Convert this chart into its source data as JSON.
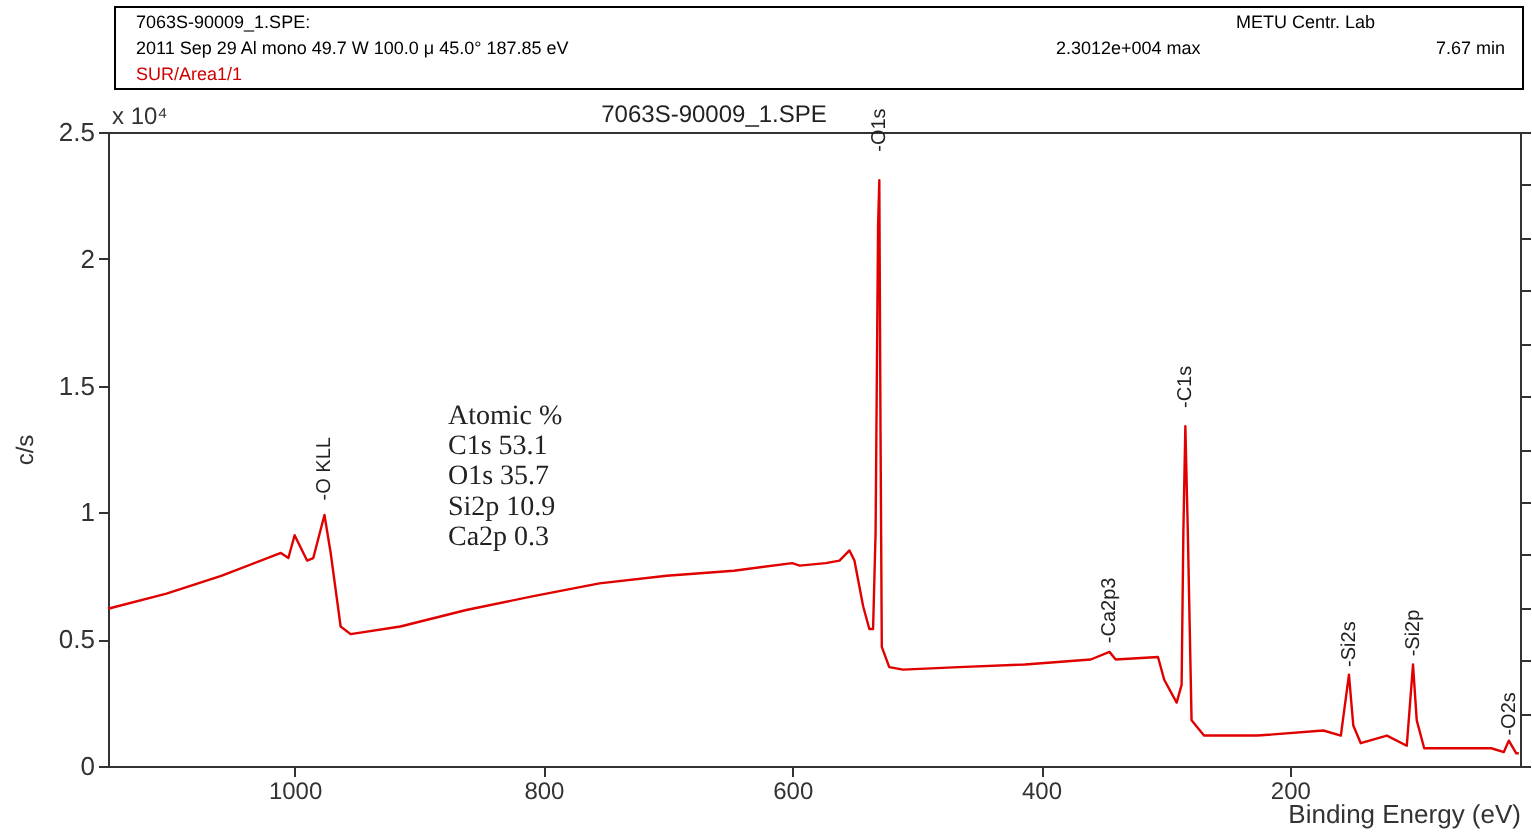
{
  "chart_data": {
    "type": "line",
    "title": "7063S-90009_1.SPE",
    "xlabel": "Binding Energy (eV)",
    "ylabel": "c/s",
    "annotations": [
      "7063S-90009_1.SPE:",
      "2011 Sep 29  Al mono  49.7 W  100.0 μ  45.0°  187.85 eV",
      "SUR/Area1/1",
      "METU Centr. Lab",
      "2.3012e+004 max",
      "7.67 min",
      "x 10⁴",
      "Atomic %",
      "C1s   53.1",
      "O1s   35.7",
      "Si2p  10.9",
      "Ca2p   0.3",
      {
        "text": "-O KLL",
        "x": 976,
        "y": 0.99
      },
      {
        "text": "-O1s",
        "x": 530,
        "y": 2.31
      },
      {
        "text": "-Ca2p3",
        "x": 345,
        "y": 0.45
      },
      {
        "text": "-C1s",
        "x": 284,
        "y": 1.34
      },
      {
        "text": "-Si2s",
        "x": 152.5,
        "y": 0.36
      },
      {
        "text": "-Si2p",
        "x": 101,
        "y": 0.4
      },
      {
        "text": "-O2s",
        "x": 24,
        "y": 0.1
      }
    ],
    "x": [
      1150,
      1103,
      1059,
      1011,
      1005,
      1000,
      990,
      985,
      976,
      971,
      963,
      955,
      915,
      862,
      808,
      755,
      701,
      647,
      600,
      594,
      573,
      562,
      554,
      550,
      543,
      538,
      535,
      533,
      531,
      530,
      529,
      528,
      522,
      511,
      466,
      413,
      360,
      345,
      340,
      306,
      301,
      291,
      287,
      285.6,
      284,
      282,
      279,
      269,
      226,
      173,
      159,
      152.5,
      149,
      143,
      122,
      106,
      101,
      98,
      92,
      38,
      28,
      24,
      18,
      16
    ],
    "series": [
      {
        "color": "#e00000",
        "values": [
          0.62,
          0.68,
          0.75,
          0.84,
          0.82,
          0.91,
          0.81,
          0.82,
          0.99,
          0.84,
          0.55,
          0.52,
          0.55,
          0.615,
          0.67,
          0.72,
          0.75,
          0.77,
          0.8,
          0.79,
          0.8,
          0.81,
          0.85,
          0.81,
          0.63,
          0.54,
          0.54,
          0.92,
          2.13,
          2.31,
          1.3,
          0.47,
          0.39,
          0.38,
          0.39,
          0.4,
          0.42,
          0.45,
          0.42,
          0.43,
          0.34,
          0.25,
          0.32,
          0.92,
          1.34,
          0.92,
          0.18,
          0.12,
          0.12,
          0.14,
          0.12,
          0.36,
          0.16,
          0.09,
          0.12,
          0.08,
          0.4,
          0.18,
          0.07,
          0.07,
          0.055,
          0.1,
          0.05,
          0.05
        ]
      }
    ],
    "xlim": [
      1150,
      15
    ],
    "ylim": [
      0,
      2.5
    ],
    "xticks": [
      1000,
      800,
      600,
      400,
      200
    ],
    "yticks": [
      0,
      0.5,
      1,
      1.5,
      2,
      2.5
    ],
    "grid": false,
    "marker": "none",
    "line_style": "solid"
  }
}
